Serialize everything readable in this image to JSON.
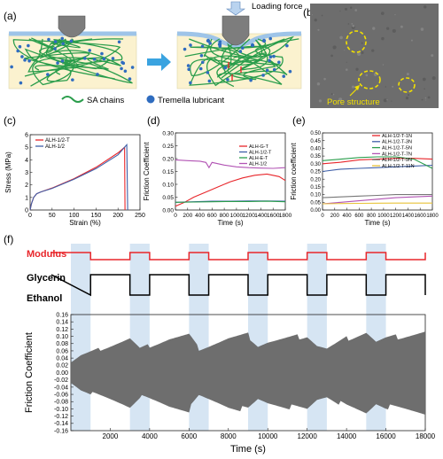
{
  "panels": {
    "a": {
      "label": "(a)",
      "loading_force": "Loading force",
      "legend_sa": "SA chains",
      "legend_tremella": "Tremella lubricant"
    },
    "b": {
      "label": "(b)",
      "annotation": "Pore structure"
    },
    "c": {
      "label": "(c)"
    },
    "d": {
      "label": "(d)"
    },
    "e": {
      "label": "(e)"
    },
    "f": {
      "label": "(f)",
      "modulus": "Modulus",
      "glycerin": "Glycerin",
      "ethanol": "Ethanol"
    }
  },
  "colors": {
    "red": "#e8262b",
    "blue": "#3e5fa8",
    "green": "#2a9d4b",
    "purple": "#b254b4",
    "gray": "#777777",
    "yellow": "#e8c43a",
    "shade": "#cfe0f1",
    "signal": "#6e6e6e"
  },
  "chart_data": [
    {
      "panel": "c",
      "type": "line",
      "xlabel": "Strain (%)",
      "ylabel": "Stress (MPa)",
      "xlim": [
        0,
        250
      ],
      "ylim": [
        0,
        6
      ],
      "xticks": [
        "0",
        "50",
        "100",
        "150",
        "200",
        "250"
      ],
      "yticks": [
        "0",
        "1",
        "2",
        "3",
        "4",
        "5",
        "6"
      ],
      "legend": "top-left",
      "series": [
        {
          "name": "ALH-1/2-T",
          "color": "#e8262b",
          "points": [
            [
              0,
              0
            ],
            [
              3,
              0.5
            ],
            [
              8,
              1.0
            ],
            [
              15,
              1.3
            ],
            [
              25,
              1.45
            ],
            [
              50,
              1.75
            ],
            [
              100,
              2.5
            ],
            [
              150,
              3.4
            ],
            [
              200,
              4.55
            ],
            [
              215,
              5.0
            ],
            [
              216,
              0
            ]
          ]
        },
        {
          "name": "ALH-1/2",
          "color": "#3e5fa8",
          "points": [
            [
              0,
              0
            ],
            [
              3,
              0.5
            ],
            [
              8,
              1.0
            ],
            [
              15,
              1.3
            ],
            [
              25,
              1.45
            ],
            [
              50,
              1.72
            ],
            [
              100,
              2.45
            ],
            [
              150,
              3.3
            ],
            [
              200,
              4.4
            ],
            [
              220,
              5.2
            ],
            [
              222,
              0
            ]
          ]
        }
      ]
    },
    {
      "panel": "d",
      "type": "line",
      "xlabel": "Time (s)",
      "ylabel": "Friction Coefficient",
      "xlim": [
        0,
        1800
      ],
      "ylim": [
        0,
        0.3
      ],
      "xticks": [
        "0",
        "200",
        "400",
        "600",
        "800",
        "1000",
        "1200",
        "1400",
        "1600",
        "1800"
      ],
      "yticks": [
        "0.00",
        "0.05",
        "0.10",
        "0.15",
        "0.20",
        "0.25",
        "0.30"
      ],
      "legend": "top-right",
      "series": [
        {
          "name": "ALH-G-T",
          "color": "#e8262b",
          "points": [
            [
              0,
              0.015
            ],
            [
              150,
              0.03
            ],
            [
              300,
              0.05
            ],
            [
              500,
              0.07
            ],
            [
              700,
              0.09
            ],
            [
              900,
              0.11
            ],
            [
              1100,
              0.125
            ],
            [
              1300,
              0.135
            ],
            [
              1500,
              0.14
            ],
            [
              1700,
              0.13
            ],
            [
              1800,
              0.115
            ]
          ]
        },
        {
          "name": "ALH-1/2-T",
          "color": "#3e5fa8",
          "points": [
            [
              0,
              0.03
            ],
            [
              300,
              0.032
            ],
            [
              600,
              0.034
            ],
            [
              900,
              0.034
            ],
            [
              1200,
              0.035
            ],
            [
              1500,
              0.035
            ],
            [
              1800,
              0.034
            ]
          ]
        },
        {
          "name": "ALH-E-T",
          "color": "#2a9d4b",
          "points": [
            [
              0,
              0.03
            ],
            [
              300,
              0.031
            ],
            [
              600,
              0.032
            ],
            [
              900,
              0.033
            ],
            [
              1200,
              0.033
            ],
            [
              1500,
              0.034
            ],
            [
              1800,
              0.032
            ]
          ]
        },
        {
          "name": "ALH-1/2",
          "color": "#b254b4",
          "points": [
            [
              0,
              0.195
            ],
            [
              200,
              0.192
            ],
            [
              400,
              0.19
            ],
            [
              500,
              0.185
            ],
            [
              550,
              0.165
            ],
            [
              600,
              0.185
            ],
            [
              800,
              0.175
            ],
            [
              1000,
              0.168
            ],
            [
              1200,
              0.165
            ],
            [
              1400,
              0.163
            ],
            [
              1600,
              0.162
            ],
            [
              1800,
              0.165
            ]
          ]
        }
      ]
    },
    {
      "panel": "e",
      "type": "line",
      "xlabel": "Time (s)",
      "ylabel": "Friction coefficient",
      "xlim": [
        0,
        1800
      ],
      "ylim": [
        0,
        0.5
      ],
      "xticks": [
        "0",
        "200",
        "400",
        "600",
        "800",
        "1000",
        "1200",
        "1400",
        "1600",
        "1800"
      ],
      "yticks": [
        "0.00",
        "0.05",
        "0.10",
        "0.15",
        "0.20",
        "0.25",
        "0.30",
        "0.35",
        "0.40",
        "0.45",
        "0.50"
      ],
      "legend": "top-right",
      "series": [
        {
          "name": "ALH-1/2-T-1N",
          "color": "#e8262b",
          "points": [
            [
              0,
              0.3
            ],
            [
              300,
              0.31
            ],
            [
              600,
              0.325
            ],
            [
              900,
              0.33
            ],
            [
              1200,
              0.335
            ],
            [
              1500,
              0.335
            ],
            [
              1800,
              0.33
            ]
          ]
        },
        {
          "name": "ALH-1/2-T-3N",
          "color": "#3e5fa8",
          "points": [
            [
              0,
              0.25
            ],
            [
              300,
              0.265
            ],
            [
              600,
              0.27
            ],
            [
              900,
              0.275
            ],
            [
              1200,
              0.28
            ],
            [
              1500,
              0.285
            ],
            [
              1800,
              0.29
            ]
          ]
        },
        {
          "name": "ALH-1/2-T-5N",
          "color": "#2a9d4b",
          "points": [
            [
              0,
              0.32
            ],
            [
              300,
              0.33
            ],
            [
              600,
              0.34
            ],
            [
              900,
              0.345
            ],
            [
              1200,
              0.345
            ],
            [
              1500,
              0.33
            ],
            [
              1800,
              0.27
            ]
          ]
        },
        {
          "name": "ALH-1/2-T-7N",
          "color": "#b254b4",
          "points": [
            [
              0,
              0.04
            ],
            [
              300,
              0.05
            ],
            [
              600,
              0.06
            ],
            [
              900,
              0.07
            ],
            [
              1200,
              0.08
            ],
            [
              1500,
              0.085
            ],
            [
              1800,
              0.09
            ]
          ]
        },
        {
          "name": "ALH-1/2-T-9N",
          "color": "#777777",
          "points": [
            [
              0,
              0.08
            ],
            [
              300,
              0.085
            ],
            [
              600,
              0.09
            ],
            [
              900,
              0.095
            ],
            [
              1200,
              0.1
            ],
            [
              1500,
              0.1
            ],
            [
              1800,
              0.1
            ]
          ]
        },
        {
          "name": "ALH-1/2-T-11N",
          "color": "#e8c43a",
          "points": [
            [
              0,
              0.04
            ],
            [
              300,
              0.042
            ],
            [
              600,
              0.043
            ],
            [
              900,
              0.044
            ],
            [
              1200,
              0.045
            ],
            [
              1500,
              0.045
            ],
            [
              1800,
              0.045
            ]
          ]
        }
      ]
    },
    {
      "panel": "f",
      "type": "line",
      "xlabel": "Time (s)",
      "ylabel": "Friction Coefficient",
      "xlim": [
        0,
        18000
      ],
      "ylim": [
        -0.16,
        0.16
      ],
      "xticks": [
        "2000",
        "4000",
        "6000",
        "8000",
        "10000",
        "12000",
        "14000",
        "16000",
        "18000"
      ],
      "yticks": [
        "-0.16",
        "-0.14",
        "-0.12",
        "-0.10",
        "-0.08",
        "-0.06",
        "-0.04",
        "-0.02",
        "0.00",
        "0.02",
        "0.04",
        "0.06",
        "0.08",
        "0.10",
        "0.12",
        "0.14",
        "0.16"
      ],
      "shaded_intervals": [
        [
          0,
          1000
        ],
        [
          3000,
          4000
        ],
        [
          6000,
          7000
        ],
        [
          9000,
          10000
        ],
        [
          12000,
          13000
        ],
        [
          15000,
          16000
        ]
      ],
      "envelope": {
        "x": [
          0,
          500,
          1000,
          2000,
          3000,
          3500,
          4000,
          5000,
          6000,
          6500,
          7000,
          8000,
          9000,
          9500,
          10000,
          11000,
          12000,
          12500,
          13000,
          14000,
          15000,
          15500,
          16000,
          17000,
          18000
        ],
        "max": [
          0.03,
          0.05,
          0.06,
          0.08,
          0.1,
          0.07,
          0.08,
          0.1,
          0.11,
          0.07,
          0.08,
          0.1,
          0.11,
          0.08,
          0.09,
          0.1,
          0.11,
          0.08,
          0.07,
          0.1,
          0.12,
          0.09,
          0.1,
          0.11,
          0.12
        ],
        "min": [
          -0.03,
          -0.05,
          -0.06,
          -0.08,
          -0.1,
          -0.07,
          -0.08,
          -0.1,
          -0.11,
          -0.07,
          -0.08,
          -0.1,
          -0.11,
          -0.08,
          -0.09,
          -0.1,
          -0.11,
          -0.08,
          -0.07,
          -0.1,
          -0.12,
          -0.09,
          -0.1,
          -0.11,
          -0.12
        ]
      },
      "modulus_signal": {
        "period_s": 3000,
        "high_s": 1000
      }
    }
  ]
}
